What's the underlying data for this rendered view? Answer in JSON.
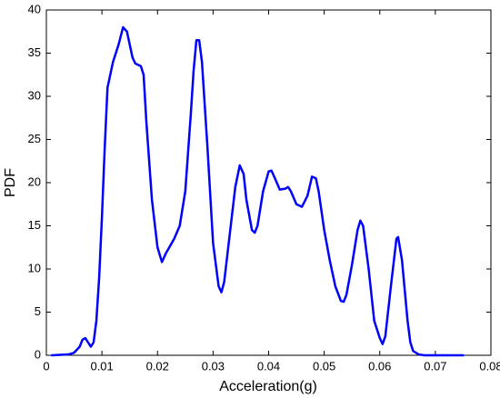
{
  "chart_data": {
    "type": "line",
    "x_label": "Acceleration(g)",
    "y_label": "PDF",
    "color": "#0000ff",
    "x": [
      0.001,
      0.004,
      0.005,
      0.006,
      0.0065,
      0.007,
      0.0075,
      0.008,
      0.0085,
      0.009,
      0.0095,
      0.01,
      0.0105,
      0.011,
      0.012,
      0.013,
      0.0138,
      0.0145,
      0.0155,
      0.016,
      0.017,
      0.0175,
      0.018,
      0.019,
      0.02,
      0.0208,
      0.0215,
      0.023,
      0.024,
      0.025,
      0.026,
      0.0265,
      0.027,
      0.0275,
      0.028,
      0.029,
      0.03,
      0.031,
      0.0315,
      0.032,
      0.033,
      0.034,
      0.0348,
      0.0355,
      0.036,
      0.037,
      0.0375,
      0.038,
      0.039,
      0.04,
      0.0405,
      0.041,
      0.042,
      0.043,
      0.0435,
      0.044,
      0.045,
      0.046,
      0.047,
      0.0478,
      0.0485,
      0.049,
      0.05,
      0.051,
      0.052,
      0.053,
      0.0535,
      0.054,
      0.055,
      0.056,
      0.0565,
      0.057,
      0.058,
      0.059,
      0.06,
      0.0605,
      0.061,
      0.062,
      0.063,
      0.0633,
      0.064,
      0.065,
      0.0655,
      0.066,
      0.067,
      0.068,
      0.075
    ],
    "values": [
      0,
      0.1,
      0.3,
      1.0,
      1.8,
      2.0,
      1.5,
      1.0,
      1.5,
      4,
      9,
      16,
      24,
      31,
      34,
      36,
      38,
      37.5,
      34.5,
      33.8,
      33.5,
      32.5,
      27,
      18,
      12.5,
      10.8,
      11.8,
      13.5,
      15,
      19,
      28,
      33,
      36.5,
      36.5,
      34,
      24,
      13,
      8,
      7.3,
      8.5,
      14,
      19.5,
      22,
      21,
      18,
      14.5,
      14.2,
      15,
      19,
      21.3,
      21.4,
      20.7,
      19.2,
      19.3,
      19.5,
      19,
      17.5,
      17.2,
      18.5,
      20.7,
      20.5,
      19,
      14.5,
      11,
      8,
      6.3,
      6.2,
      7,
      10.5,
      14.5,
      15.6,
      15,
      10,
      4,
      2,
      1.3,
      2.2,
      8,
      13.5,
      13.7,
      11,
      4,
      1.5,
      0.5,
      0.1,
      0,
      0
    ],
    "xlim": [
      0,
      0.08
    ],
    "xticks": [
      0,
      0.01,
      0.02,
      0.03,
      0.04,
      0.05,
      0.06,
      0.07,
      0.08
    ],
    "ylim": [
      0,
      40
    ],
    "yticks": [
      0,
      5,
      10,
      15,
      20,
      25,
      30,
      35,
      40
    ]
  }
}
